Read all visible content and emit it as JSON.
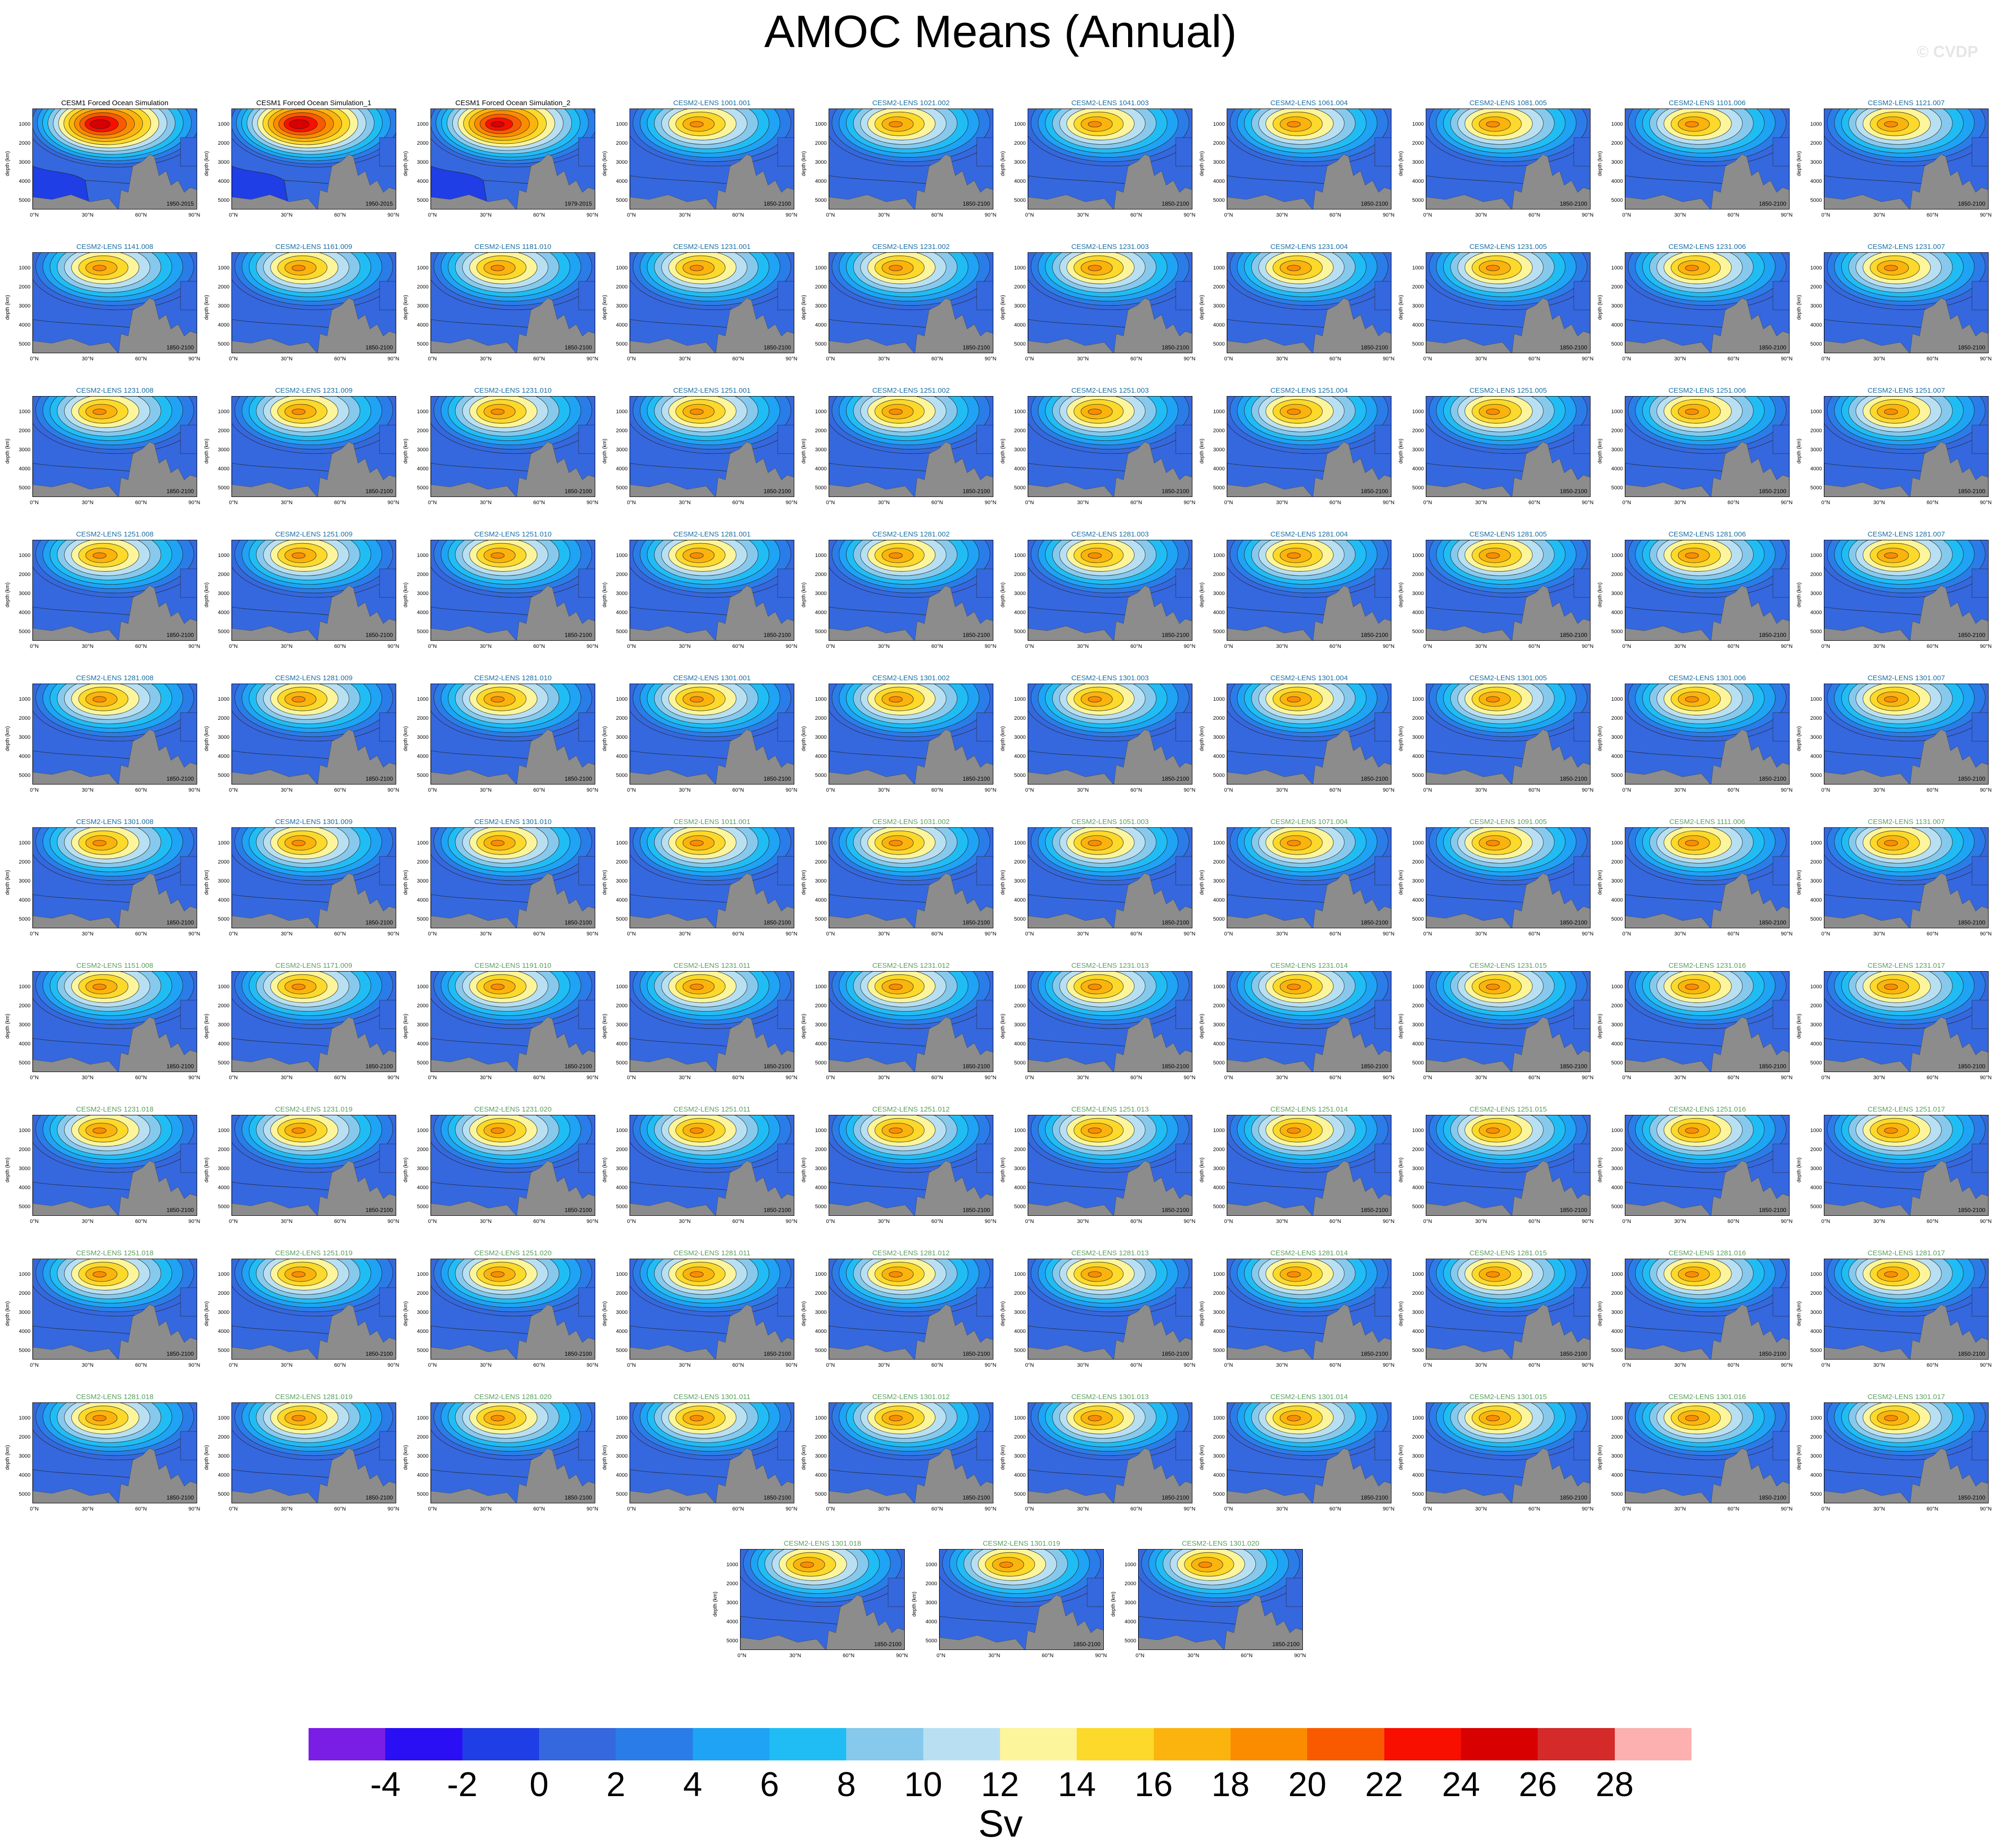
{
  "title": "AMOC Means (Annual)",
  "watermark": "© CVDP",
  "colors": {
    "obs_title": "#000000",
    "model_title_a": "#1a6fa3",
    "model_title_b": "#5aa060",
    "land": "#8c8c8c"
  },
  "axis": {
    "ylabel": "depth (km)",
    "yticks": [
      "1000",
      "2000",
      "3000",
      "4000",
      "5000"
    ],
    "xticks": [
      "0°N",
      "30°N",
      "60°N",
      "90°N"
    ]
  },
  "chart_data": {
    "type": "heatmap",
    "variable": "AMOC mean streamfunction",
    "units": "Sv",
    "levels": [
      -4,
      -2,
      0,
      2,
      4,
      6,
      8,
      10,
      12,
      14,
      16,
      18,
      20,
      22,
      24,
      26,
      28
    ],
    "colorbar_colors": [
      "#7a1ee6",
      "#2a0ff5",
      "#1f3ee6",
      "#3568de",
      "#2a7de8",
      "#1ea3f5",
      "#20bdf5",
      "#86c9ec",
      "#b9e0f2",
      "#fcf59b",
      "#fcd92a",
      "#fbb40d",
      "#fb8c00",
      "#f95a00",
      "#f80f00",
      "#d80000",
      "#d42a2a",
      "#fcb0b0"
    ],
    "colorbar_labels": [
      "-4",
      "-2",
      "0",
      "2",
      "4",
      "6",
      "8",
      "10",
      "12",
      "14",
      "16",
      "18",
      "20",
      "22",
      "24",
      "26",
      "28"
    ],
    "colorbar_unit": "Sv",
    "panels": [
      {
        "title": "CESM1 Forced Ocean Simulation",
        "period": "1950-2015",
        "peak": 27
      },
      {
        "title": "CESM1 Forced Ocean Simulation_1",
        "period": "1950-2015",
        "peak": 27
      },
      {
        "title": "CESM1 Forced Ocean Simulation_2",
        "period": "1979-2015",
        "peak": 26
      },
      {
        "title": "CESM2-LENS 1001.001",
        "period": "1850-2100",
        "peak": 20
      },
      {
        "title": "CESM2-LENS 1021.002",
        "period": "1850-2100",
        "peak": 20
      },
      {
        "title": "CESM2-LENS 1041.003",
        "period": "1850-2100",
        "peak": 20
      },
      {
        "title": "CESM2-LENS 1061.004",
        "period": "1850-2100",
        "peak": 20
      },
      {
        "title": "CESM2-LENS 1081.005",
        "period": "1850-2100",
        "peak": 20
      },
      {
        "title": "CESM2-LENS 1101.006",
        "period": "1850-2100",
        "peak": 20
      },
      {
        "title": "CESM2-LENS 1121.007",
        "period": "1850-2100",
        "peak": 20
      },
      {
        "title": "CESM2-LENS 1141.008",
        "period": "1850-2100",
        "peak": 20
      },
      {
        "title": "CESM2-LENS 1161.009",
        "period": "1850-2100",
        "peak": 20
      },
      {
        "title": "CESM2-LENS 1181.010",
        "period": "1850-2100",
        "peak": 20
      },
      {
        "title": "CESM2-LENS 1231.001",
        "period": "1850-2100",
        "peak": 20
      },
      {
        "title": "CESM2-LENS 1231.002",
        "period": "1850-2100",
        "peak": 20
      },
      {
        "title": "CESM2-LENS 1231.003",
        "period": "1850-2100",
        "peak": 20
      },
      {
        "title": "CESM2-LENS 1231.004",
        "period": "1850-2100",
        "peak": 20
      },
      {
        "title": "CESM2-LENS 1231.005",
        "period": "1850-2100",
        "peak": 20
      },
      {
        "title": "CESM2-LENS 1231.006",
        "period": "1850-2100",
        "peak": 20
      },
      {
        "title": "CESM2-LENS 1231.007",
        "period": "1850-2100",
        "peak": 20
      },
      {
        "title": "CESM2-LENS 1231.008",
        "period": "1850-2100",
        "peak": 20
      },
      {
        "title": "CESM2-LENS 1231.009",
        "period": "1850-2100",
        "peak": 20
      },
      {
        "title": "CESM2-LENS 1231.010",
        "period": "1850-2100",
        "peak": 20
      },
      {
        "title": "CESM2-LENS 1251.001",
        "period": "1850-2100",
        "peak": 20
      },
      {
        "title": "CESM2-LENS 1251.002",
        "period": "1850-2100",
        "peak": 20
      },
      {
        "title": "CESM2-LENS 1251.003",
        "period": "1850-2100",
        "peak": 20
      },
      {
        "title": "CESM2-LENS 1251.004",
        "period": "1850-2100",
        "peak": 20
      },
      {
        "title": "CESM2-LENS 1251.005",
        "period": "1850-2100",
        "peak": 20
      },
      {
        "title": "CESM2-LENS 1251.006",
        "period": "1850-2100",
        "peak": 20
      },
      {
        "title": "CESM2-LENS 1251.007",
        "period": "1850-2100",
        "peak": 20
      },
      {
        "title": "CESM2-LENS 1251.008",
        "period": "1850-2100",
        "peak": 20
      },
      {
        "title": "CESM2-LENS 1251.009",
        "period": "1850-2100",
        "peak": 20
      },
      {
        "title": "CESM2-LENS 1251.010",
        "period": "1850-2100",
        "peak": 20
      },
      {
        "title": "CESM2-LENS 1281.001",
        "period": "1850-2100",
        "peak": 20
      },
      {
        "title": "CESM2-LENS 1281.002",
        "period": "1850-2100",
        "peak": 20
      },
      {
        "title": "CESM2-LENS 1281.003",
        "period": "1850-2100",
        "peak": 20
      },
      {
        "title": "CESM2-LENS 1281.004",
        "period": "1850-2100",
        "peak": 20
      },
      {
        "title": "CESM2-LENS 1281.005",
        "period": "1850-2100",
        "peak": 20
      },
      {
        "title": "CESM2-LENS 1281.006",
        "period": "1850-2100",
        "peak": 20
      },
      {
        "title": "CESM2-LENS 1281.007",
        "period": "1850-2100",
        "peak": 20
      },
      {
        "title": "CESM2-LENS 1281.008",
        "period": "1850-2100",
        "peak": 20
      },
      {
        "title": "CESM2-LENS 1281.009",
        "period": "1850-2100",
        "peak": 20
      },
      {
        "title": "CESM2-LENS 1281.010",
        "period": "1850-2100",
        "peak": 20
      },
      {
        "title": "CESM2-LENS 1301.001",
        "period": "1850-2100",
        "peak": 20
      },
      {
        "title": "CESM2-LENS 1301.002",
        "period": "1850-2100",
        "peak": 20
      },
      {
        "title": "CESM2-LENS 1301.003",
        "period": "1850-2100",
        "peak": 20
      },
      {
        "title": "CESM2-LENS 1301.004",
        "period": "1850-2100",
        "peak": 20
      },
      {
        "title": "CESM2-LENS 1301.005",
        "period": "1850-2100",
        "peak": 20
      },
      {
        "title": "CESM2-LENS 1301.006",
        "period": "1850-2100",
        "peak": 20
      },
      {
        "title": "CESM2-LENS 1301.007",
        "period": "1850-2100",
        "peak": 20
      },
      {
        "title": "CESM2-LENS 1301.008",
        "period": "1850-2100",
        "peak": 20
      },
      {
        "title": "CESM2-LENS 1301.009",
        "period": "1850-2100",
        "peak": 20
      },
      {
        "title": "CESM2-LENS 1301.010",
        "period": "1850-2100",
        "peak": 20
      },
      {
        "title": "CESM2-LENS 1011.001",
        "period": "1850-2100",
        "peak": 20
      },
      {
        "title": "CESM2-LENS 1031.002",
        "period": "1850-2100",
        "peak": 20
      },
      {
        "title": "CESM2-LENS 1051.003",
        "period": "1850-2100",
        "peak": 20
      },
      {
        "title": "CESM2-LENS 1071.004",
        "period": "1850-2100",
        "peak": 20
      },
      {
        "title": "CESM2-LENS 1091.005",
        "period": "1850-2100",
        "peak": 20
      },
      {
        "title": "CESM2-LENS 1111.006",
        "period": "1850-2100",
        "peak": 20
      },
      {
        "title": "CESM2-LENS 1131.007",
        "period": "1850-2100",
        "peak": 20
      },
      {
        "title": "CESM2-LENS 1151.008",
        "period": "1850-2100",
        "peak": 20
      },
      {
        "title": "CESM2-LENS 1171.009",
        "period": "1850-2100",
        "peak": 20
      },
      {
        "title": "CESM2-LENS 1191.010",
        "period": "1850-2100",
        "peak": 20
      },
      {
        "title": "CESM2-LENS 1231.011",
        "period": "1850-2100",
        "peak": 20
      },
      {
        "title": "CESM2-LENS 1231.012",
        "period": "1850-2100",
        "peak": 20
      },
      {
        "title": "CESM2-LENS 1231.013",
        "period": "1850-2100",
        "peak": 20
      },
      {
        "title": "CESM2-LENS 1231.014",
        "period": "1850-2100",
        "peak": 20
      },
      {
        "title": "CESM2-LENS 1231.015",
        "period": "1850-2100",
        "peak": 20
      },
      {
        "title": "CESM2-LENS 1231.016",
        "period": "1850-2100",
        "peak": 20
      },
      {
        "title": "CESM2-LENS 1231.017",
        "period": "1850-2100",
        "peak": 20
      },
      {
        "title": "CESM2-LENS 1231.018",
        "period": "1850-2100",
        "peak": 20
      },
      {
        "title": "CESM2-LENS 1231.019",
        "period": "1850-2100",
        "peak": 20
      },
      {
        "title": "CESM2-LENS 1231.020",
        "period": "1850-2100",
        "peak": 20
      },
      {
        "title": "CESM2-LENS 1251.011",
        "period": "1850-2100",
        "peak": 20
      },
      {
        "title": "CESM2-LENS 1251.012",
        "period": "1850-2100",
        "peak": 20
      },
      {
        "title": "CESM2-LENS 1251.013",
        "period": "1850-2100",
        "peak": 20
      },
      {
        "title": "CESM2-LENS 1251.014",
        "period": "1850-2100",
        "peak": 20
      },
      {
        "title": "CESM2-LENS 1251.015",
        "period": "1850-2100",
        "peak": 20
      },
      {
        "title": "CESM2-LENS 1251.016",
        "period": "1850-2100",
        "peak": 20
      },
      {
        "title": "CESM2-LENS 1251.017",
        "period": "1850-2100",
        "peak": 20
      },
      {
        "title": "CESM2-LENS 1251.018",
        "period": "1850-2100",
        "peak": 20
      },
      {
        "title": "CESM2-LENS 1251.019",
        "period": "1850-2100",
        "peak": 20
      },
      {
        "title": "CESM2-LENS 1251.020",
        "period": "1850-2100",
        "peak": 20
      },
      {
        "title": "CESM2-LENS 1281.011",
        "period": "1850-2100",
        "peak": 20
      },
      {
        "title": "CESM2-LENS 1281.012",
        "period": "1850-2100",
        "peak": 20
      },
      {
        "title": "CESM2-LENS 1281.013",
        "period": "1850-2100",
        "peak": 20
      },
      {
        "title": "CESM2-LENS 1281.014",
        "period": "1850-2100",
        "peak": 20
      },
      {
        "title": "CESM2-LENS 1281.015",
        "period": "1850-2100",
        "peak": 20
      },
      {
        "title": "CESM2-LENS 1281.016",
        "period": "1850-2100",
        "peak": 20
      },
      {
        "title": "CESM2-LENS 1281.017",
        "period": "1850-2100",
        "peak": 20
      },
      {
        "title": "CESM2-LENS 1281.018",
        "period": "1850-2100",
        "peak": 20
      },
      {
        "title": "CESM2-LENS 1281.019",
        "period": "1850-2100",
        "peak": 20
      },
      {
        "title": "CESM2-LENS 1281.020",
        "period": "1850-2100",
        "peak": 20
      },
      {
        "title": "CESM2-LENS 1301.011",
        "period": "1850-2100",
        "peak": 20
      },
      {
        "title": "CESM2-LENS 1301.012",
        "period": "1850-2100",
        "peak": 20
      },
      {
        "title": "CESM2-LENS 1301.013",
        "period": "1850-2100",
        "peak": 20
      },
      {
        "title": "CESM2-LENS 1301.014",
        "period": "1850-2100",
        "peak": 20
      },
      {
        "title": "CESM2-LENS 1301.015",
        "period": "1850-2100",
        "peak": 20
      },
      {
        "title": "CESM2-LENS 1301.016",
        "period": "1850-2100",
        "peak": 20
      },
      {
        "title": "CESM2-LENS 1301.017",
        "period": "1850-2100",
        "peak": 20
      },
      {
        "title": "CESM2-LENS 1301.018",
        "period": "1850-2100",
        "peak": 20
      },
      {
        "title": "CESM2-LENS 1301.019",
        "period": "1850-2100",
        "peak": 20
      },
      {
        "title": "CESM2-LENS 1301.020",
        "period": "1850-2100",
        "peak": 20
      }
    ]
  }
}
